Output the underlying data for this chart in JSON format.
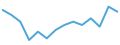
{
  "x": [
    0,
    1,
    2,
    3,
    4,
    5,
    6,
    7,
    8,
    9,
    10,
    11,
    12,
    13
  ],
  "y": [
    10.0,
    8.5,
    6.5,
    1.0,
    3.5,
    1.5,
    4.0,
    5.5,
    6.5,
    5.5,
    7.5,
    5.0,
    11.0,
    9.5
  ],
  "line_color": "#4da6d9",
  "background_color": "#ffffff",
  "linewidth": 1.4
}
